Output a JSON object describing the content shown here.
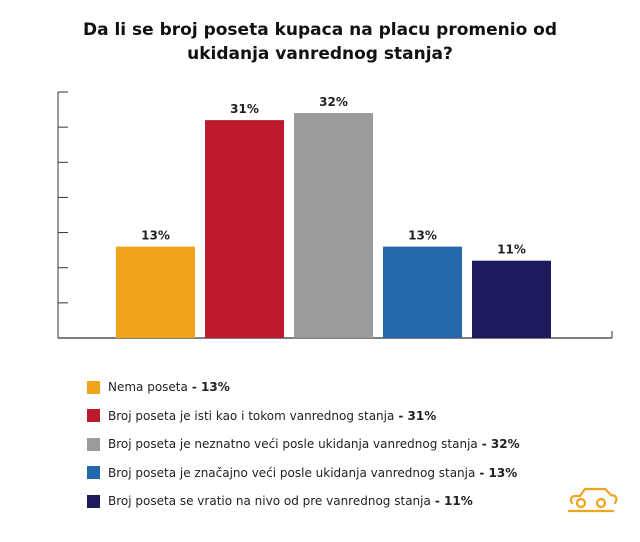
{
  "chart_data": {
    "type": "bar",
    "title_line1": "Da li se broj poseta kupaca na placu promenio od",
    "title_line2": "ukidanja vanrednog stanja?",
    "categories": [
      "Nema poseta",
      "Broj poseta je isti kao i tokom vanrednog stanja",
      "Broj poseta je neznatno veći posle ukidanja vanrednog stanja",
      "Broj poseta je značajno veći posle ukidanja vanrednog stanja",
      "Broj poseta se vratio na nivo od pre vanrednog stanja"
    ],
    "values": [
      13,
      31,
      32,
      13,
      11
    ],
    "labels": [
      "13%",
      "31%",
      "32%",
      "13%",
      "11%"
    ],
    "legend_values": [
      "- 13%",
      "- 31%",
      "- 32%",
      "- 13%",
      "- 11%"
    ],
    "colors": [
      "#f0a31c",
      "#be1a2d",
      "#9b9b9b",
      "#2368ad",
      "#1c1a5c"
    ],
    "ylim": [
      0,
      35
    ],
    "ytick_step": 5,
    "xlabel": "",
    "ylabel": "",
    "legend_position": "bottom-left"
  },
  "logo_icon": "car-icon"
}
